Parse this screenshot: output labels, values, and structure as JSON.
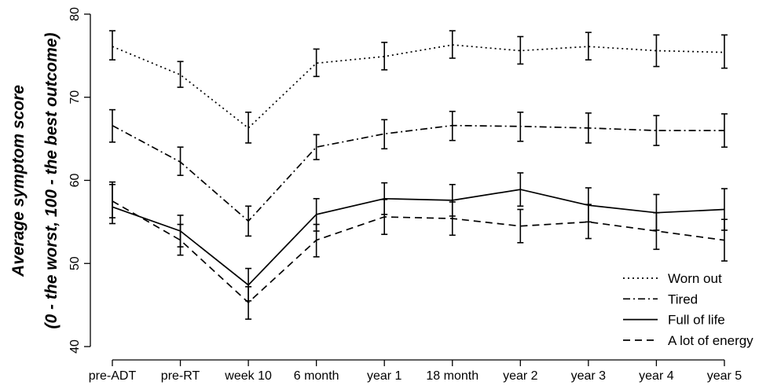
{
  "chart_data": {
    "type": "line",
    "title": "",
    "xlabel": "",
    "ylabel": [
      "Average symptom score",
      "(0 - the worst, 100 - the best outcome)"
    ],
    "categories": [
      "pre-ADT",
      "pre-RT",
      "week 10",
      "6 month",
      "year 1",
      "18 month",
      "year 2",
      "year 3",
      "year 4",
      "year 5"
    ],
    "ylim": [
      40,
      80
    ],
    "yticks": [
      40,
      50,
      60,
      70,
      80
    ],
    "grid": false,
    "legend_position": "bottom-right",
    "series": [
      {
        "name": "Worn out",
        "line_style": "dotted",
        "values": [
          76.1,
          72.7,
          66.3,
          74.1,
          74.9,
          76.3,
          75.6,
          76.1,
          75.6,
          75.4
        ],
        "lower": [
          74.5,
          71.2,
          64.5,
          72.5,
          73.3,
          74.7,
          74.0,
          74.5,
          73.7,
          73.5
        ],
        "upper": [
          78.0,
          74.3,
          68.2,
          75.8,
          76.6,
          78.0,
          77.3,
          77.8,
          77.5,
          77.5
        ]
      },
      {
        "name": "Tired",
        "line_style": "dashdot",
        "values": [
          66.6,
          62.2,
          55.1,
          64.0,
          65.6,
          66.6,
          66.5,
          66.3,
          66.0,
          66.0
        ],
        "lower": [
          64.6,
          60.6,
          53.3,
          62.5,
          63.8,
          64.8,
          64.7,
          64.5,
          64.2,
          64.0
        ],
        "upper": [
          68.5,
          64.0,
          56.9,
          65.5,
          67.3,
          68.3,
          68.2,
          68.1,
          67.8,
          68.0
        ]
      },
      {
        "name": "Full of life",
        "line_style": "solid",
        "values": [
          56.8,
          53.9,
          47.4,
          55.9,
          57.8,
          57.6,
          58.9,
          57.0,
          56.1,
          56.5
        ],
        "lower": [
          54.8,
          52.0,
          45.5,
          53.9,
          55.9,
          55.7,
          56.9,
          55.0,
          54.0,
          54.0
        ],
        "upper": [
          59.8,
          55.8,
          49.4,
          57.8,
          59.7,
          59.5,
          60.9,
          59.1,
          58.3,
          59.0
        ]
      },
      {
        "name": "A lot of energy",
        "line_style": "dashed",
        "values": [
          57.5,
          52.8,
          45.3,
          52.8,
          55.6,
          55.4,
          54.5,
          55.0,
          53.9,
          52.8
        ],
        "lower": [
          55.5,
          51.0,
          43.3,
          50.8,
          53.5,
          53.4,
          52.5,
          53.0,
          51.7,
          50.3
        ],
        "upper": [
          59.5,
          54.7,
          47.2,
          54.7,
          57.7,
          57.4,
          56.5,
          57.1,
          56.1,
          55.3
        ]
      }
    ]
  }
}
